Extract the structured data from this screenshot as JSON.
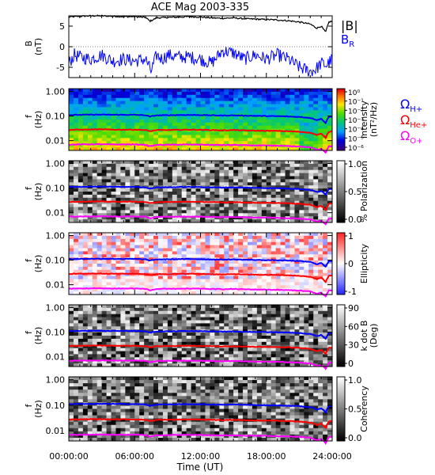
{
  "figure": {
    "title": "ACE Mag 2003-335",
    "xlabel": "Time (UT)",
    "xticks": [
      "00:00:00",
      "06:00:00",
      "12:00:00",
      "18:00:00",
      "24:00:00"
    ]
  },
  "legend_top": {
    "b_total": "|B|",
    "b_r": "B",
    "b_r_sub": "R",
    "b_total_color": "#000000",
    "b_r_color": "#0000ff"
  },
  "gyro_legend": [
    {
      "label": "Ω",
      "sub": "H+",
      "color": "#0000ff"
    },
    {
      "label": "Ω",
      "sub": "He+",
      "color": "#ff0000"
    },
    {
      "label": "Ω",
      "sub": "O+",
      "color": "#ff00ff"
    }
  ],
  "chart_data": [
    {
      "type": "line",
      "ylabel": "B",
      "yunit": "(nT)",
      "ylim": [
        -7.5,
        7.5
      ],
      "yticks": [
        "5",
        "0",
        "-5"
      ],
      "xlim_hours": [
        0,
        24
      ],
      "series": [
        {
          "name": "|B|",
          "color": "#000000",
          "x": [
            0,
            1,
            2,
            3,
            4,
            5,
            6,
            7,
            7.4,
            8,
            9,
            10,
            11,
            12,
            13,
            14,
            15,
            16,
            17,
            18,
            19,
            20,
            21,
            22,
            22.6,
            23,
            23.4,
            23.7,
            24
          ],
          "y": [
            7.2,
            7.4,
            7.5,
            7.5,
            7.4,
            7.3,
            7.3,
            7.1,
            6.2,
            7.0,
            7.1,
            7.2,
            7.3,
            7.2,
            7.0,
            6.9,
            7.0,
            6.8,
            6.7,
            6.6,
            6.5,
            6.3,
            6.0,
            5.5,
            4.5,
            5.0,
            3.5,
            6.0,
            6.2
          ]
        },
        {
          "name": "B_R",
          "color": "#0000ff",
          "x": [
            0,
            0.5,
            1,
            2,
            3,
            4,
            5,
            6,
            7,
            7.5,
            8,
            8.5,
            9,
            10,
            11,
            12,
            13,
            14,
            15,
            16,
            17,
            18,
            19,
            20,
            21,
            22,
            22.5,
            23,
            23.5,
            24
          ],
          "y": [
            -4,
            -2,
            -2.5,
            -3,
            -2,
            -3.5,
            -3,
            -3.5,
            -3,
            -6,
            -2,
            -3,
            -2,
            -2.5,
            -2.5,
            -3,
            -4,
            -1,
            -1.5,
            -3,
            -2,
            -3,
            -2,
            -3,
            -5,
            -6,
            -5.5,
            -4,
            -4.5,
            -3
          ]
        }
      ]
    },
    {
      "type": "heatmap",
      "name": "Intensity",
      "ylabel": "f",
      "yunit": "(Hz)",
      "yscale": "log",
      "ylim": [
        0.004,
        1.3
      ],
      "yticks": [
        "1.00",
        "0.10",
        "0.01"
      ],
      "colorbar": {
        "label": "Intensity",
        "unit": "(nT²/Hz)",
        "ticks": [
          "10⁰",
          "10⁻¹",
          "10⁻²",
          "10⁻³",
          "10⁻⁴",
          "10⁻⁵",
          "10⁻⁶"
        ],
        "colormap": "rainbow"
      }
    },
    {
      "type": "heatmap",
      "name": "% Polarization",
      "ylabel": "f",
      "yunit": "(Hz)",
      "yscale": "log",
      "yticks": [
        "1.00",
        "0.10",
        "0.01"
      ],
      "colorbar": {
        "label": "% Polarization",
        "ticks": [
          "1.0",
          "0.5",
          "0.0"
        ],
        "colormap": "gray"
      }
    },
    {
      "type": "heatmap",
      "name": "Ellipticity",
      "ylabel": "f",
      "yunit": "(Hz)",
      "yscale": "log",
      "yticks": [
        "1.00",
        "0.10",
        "0.01"
      ],
      "colorbar": {
        "label": "Ellipticity",
        "ticks": [
          "1",
          "0",
          "-1"
        ],
        "colormap": "blue-white-red"
      }
    },
    {
      "type": "heatmap",
      "name": "k dot B",
      "ylabel": "f",
      "yunit": "(Hz)",
      "yscale": "log",
      "yticks": [
        "1.00",
        "0.10",
        "0.01"
      ],
      "colorbar": {
        "label": "k dot B",
        "unit": "(Deg)",
        "ticks": [
          "90",
          "60",
          "30",
          "0"
        ],
        "colormap": "gray"
      }
    },
    {
      "type": "heatmap",
      "name": "Coherency",
      "ylabel": "f",
      "yunit": "(Hz)",
      "yscale": "log",
      "yticks": [
        "1.00",
        "0.10",
        "0.01"
      ],
      "colorbar": {
        "label": "Coherency",
        "ticks": [
          "1.0",
          "0.5",
          "0.0"
        ],
        "colormap": "gray"
      }
    }
  ],
  "gyrofrequency_lines": {
    "x_hours": [
      0,
      1,
      2,
      3,
      4,
      5,
      6,
      7,
      7.4,
      8,
      9,
      10,
      11,
      12,
      13,
      14,
      15,
      16,
      17,
      18,
      19,
      20,
      21,
      22,
      22.6,
      23,
      23.4,
      23.7,
      24
    ],
    "H+": [
      0.11,
      0.112,
      0.114,
      0.114,
      0.113,
      0.112,
      0.112,
      0.108,
      0.095,
      0.107,
      0.108,
      0.11,
      0.111,
      0.11,
      0.107,
      0.105,
      0.107,
      0.104,
      0.102,
      0.1,
      0.099,
      0.096,
      0.092,
      0.084,
      0.069,
      0.076,
      0.053,
      0.092,
      0.095
    ],
    "He+": [
      0.0275,
      0.028,
      0.0285,
      0.0285,
      0.028,
      0.028,
      0.028,
      0.027,
      0.024,
      0.027,
      0.027,
      0.0275,
      0.028,
      0.0275,
      0.027,
      0.026,
      0.027,
      0.026,
      0.0255,
      0.025,
      0.025,
      0.024,
      0.023,
      0.021,
      0.017,
      0.019,
      0.013,
      0.023,
      0.024
    ],
    "O+": [
      0.0069,
      0.007,
      0.0071,
      0.0071,
      0.007,
      0.007,
      0.007,
      0.0068,
      0.0059,
      0.0067,
      0.0068,
      0.0069,
      0.0069,
      0.0069,
      0.0067,
      0.0066,
      0.0067,
      0.0065,
      0.0064,
      0.0063,
      0.0062,
      0.006,
      0.0058,
      0.0053,
      0.0043,
      0.0047,
      0.0033,
      0.0058,
      0.0059
    ]
  }
}
